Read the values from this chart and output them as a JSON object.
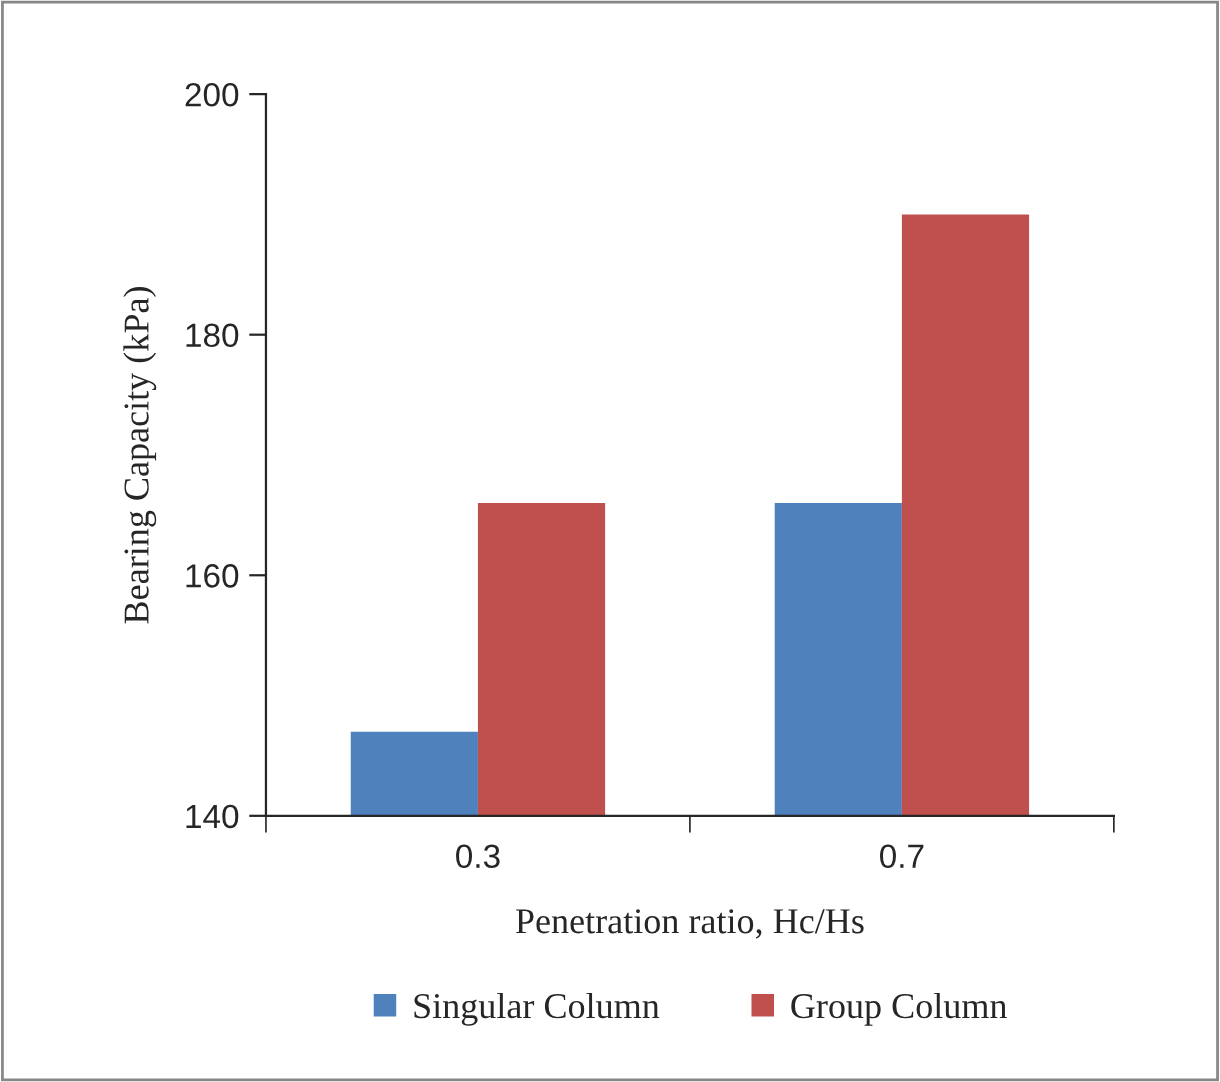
{
  "chart_data": {
    "type": "bar",
    "xlabel": "Penetration ratio, Hc/Hs",
    "ylabel": "Bearing Capacity (kPa)",
    "categories": [
      "0.3",
      "0.7"
    ],
    "series": [
      {
        "name": "Singular Column",
        "color": "#4f81bd",
        "values": [
          147,
          166
        ]
      },
      {
        "name": "Group Column",
        "color": "#c0504d",
        "values": [
          166,
          190
        ]
      }
    ],
    "ylim": [
      140,
      200
    ],
    "yticks": [
      140,
      160,
      180,
      200
    ],
    "grid": false,
    "legend": "bottom"
  }
}
